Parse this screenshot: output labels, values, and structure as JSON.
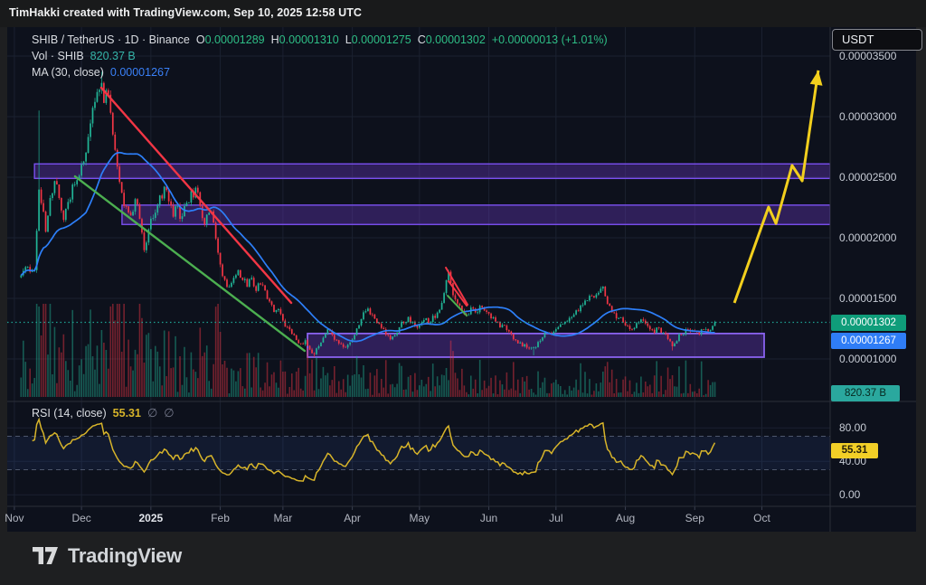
{
  "header_bar": {
    "title": "TimHakki created with TradingView.com, Sep 10, 2025 12:58 UTC"
  },
  "legend": {
    "symbol": "SHIB / TetherUS · 1D · Binance",
    "ohlc": [
      {
        "label": "O",
        "value": "0.00001289"
      },
      {
        "label": "H",
        "value": "0.00001310"
      },
      {
        "label": "L",
        "value": "0.00001275"
      },
      {
        "label": "C",
        "value": "0.00001302"
      }
    ],
    "change": "+0.00000013 (+1.01%)",
    "vol_label": "Vol · SHIB",
    "vol_value": "820.37 B",
    "ma_label": "MA (30, close)",
    "ma_value": "0.00001267"
  },
  "rsi_legend": {
    "label": "RSI (14, close)",
    "value": "55.31",
    "hidden_icons": [
      "∅",
      "∅"
    ]
  },
  "currency_button": {
    "label": "USDT"
  },
  "price_axis": {
    "labels": [
      {
        "text": "0.00003500",
        "price_e5": 3.5
      },
      {
        "text": "0.00003000",
        "price_e5": 3.0
      },
      {
        "text": "0.00002500",
        "price_e5": 2.5
      },
      {
        "text": "0.00002000",
        "price_e5": 2.0
      },
      {
        "text": "0.00001500",
        "price_e5": 1.5
      },
      {
        "text": "0.00001000",
        "price_e5": 1.0
      }
    ],
    "last_price_badge": {
      "text": "0.00001302",
      "color": "#0f9d7a"
    },
    "ma_badge": {
      "text": "0.00001267",
      "color": "#2f7df6"
    },
    "volume_badge": {
      "text": "820.37 B",
      "color": "#2aa89e"
    }
  },
  "rsi_axis": {
    "labels": [
      {
        "text": "80.00",
        "value": 80
      },
      {
        "text": "40.00",
        "value": 40
      },
      {
        "text": "0.00",
        "value": 0
      }
    ],
    "badge": {
      "text": "55.31",
      "value": 55.31,
      "color": "#f2cf27"
    }
  },
  "time_axis": {
    "labels": [
      {
        "text": "Nov",
        "day": -3,
        "bold": false
      },
      {
        "text": "Dec",
        "day": 27,
        "bold": false
      },
      {
        "text": "2025",
        "day": 58,
        "bold": true
      },
      {
        "text": "Feb",
        "day": 89,
        "bold": false
      },
      {
        "text": "Mar",
        "day": 117,
        "bold": false
      },
      {
        "text": "Apr",
        "day": 148,
        "bold": false
      },
      {
        "text": "May",
        "day": 178,
        "bold": false
      },
      {
        "text": "Jun",
        "day": 209,
        "bold": false
      },
      {
        "text": "Jul",
        "day": 239,
        "bold": false
      },
      {
        "text": "Aug",
        "day": 270,
        "bold": false
      },
      {
        "text": "Sep",
        "day": 301,
        "bold": false
      },
      {
        "text": "Oct",
        "day": 331,
        "bold": false
      }
    ]
  },
  "footer": {
    "brand": "TradingView"
  },
  "colors": {
    "background": "#0d111c",
    "page": "#1e1f21",
    "grid": "#1b2130",
    "candle_up": "#21b597",
    "candle_down": "#f23645",
    "ma_line": "#2d7ff9",
    "last_price_line": "#1fa392",
    "zone_fill": "rgba(95,52,175,0.42)",
    "zone_border": "#7a4ff0",
    "box_border": "#8a63f0",
    "trend_red": "#f23645",
    "trend_green": "#4caf50",
    "arrow_yellow": "#f2cf1d",
    "rsi_line": "#d7b42a",
    "rsi_band_dash": "#4d566b",
    "separator": "#2a2e39"
  },
  "chart_data": {
    "type": "candlestick",
    "title": "SHIB / TetherUS · 1D · Binance",
    "interval": "1D",
    "current_bar": {
      "open": 1.289e-05,
      "high": 1.31e-05,
      "low": 1.275e-05,
      "close": 1.302e-05,
      "change": 1.3e-07,
      "change_pct": 1.01
    },
    "volume_current": "820.37 B",
    "ma30_close_current": 1.267e-05,
    "rsi14_close_current": 55.31,
    "price_axis_ticks_e5": [
      3.5,
      3.0,
      2.5,
      2.0,
      1.5,
      1.0
    ],
    "x_day0": "first visible daily bar; month labels mark 1st of each month via day index",
    "close_anchors_day_price_e5": [
      [
        0,
        1.7
      ],
      [
        2,
        1.76
      ],
      [
        4,
        1.72
      ],
      [
        6,
        1.73
      ],
      [
        8,
        2.4
      ],
      [
        9,
        2.28
      ],
      [
        11,
        2.05
      ],
      [
        13,
        2.32
      ],
      [
        15,
        2.48
      ],
      [
        17,
        2.32
      ],
      [
        19,
        2.16
      ],
      [
        21,
        2.3
      ],
      [
        23,
        2.45
      ],
      [
        25,
        2.47
      ],
      [
        26,
        2.52
      ],
      [
        28,
        2.62
      ],
      [
        30,
        2.82
      ],
      [
        33,
        3.12
      ],
      [
        35,
        3.24
      ],
      [
        36,
        3.28
      ],
      [
        37,
        3.1
      ],
      [
        39,
        3.18
      ],
      [
        41,
        2.85
      ],
      [
        43,
        2.6
      ],
      [
        45,
        2.38
      ],
      [
        47,
        2.25
      ],
      [
        49,
        2.18
      ],
      [
        51,
        2.32
      ],
      [
        53,
        2.15
      ],
      [
        55,
        1.9
      ],
      [
        57,
        2.06
      ],
      [
        58,
        2.15
      ],
      [
        60,
        2.22
      ],
      [
        62,
        2.35
      ],
      [
        64,
        2.42
      ],
      [
        66,
        2.3
      ],
      [
        68,
        2.18
      ],
      [
        70,
        2.25
      ],
      [
        72,
        2.18
      ],
      [
        74,
        2.28
      ],
      [
        76,
        2.38
      ],
      [
        78,
        2.42
      ],
      [
        80,
        2.25
      ],
      [
        82,
        2.12
      ],
      [
        84,
        2.2
      ],
      [
        85,
        2.22
      ],
      [
        87,
        2.0
      ],
      [
        89,
        1.78
      ],
      [
        91,
        1.65
      ],
      [
        93,
        1.6
      ],
      [
        95,
        1.68
      ],
      [
        97,
        1.74
      ],
      [
        99,
        1.66
      ],
      [
        101,
        1.6
      ],
      [
        103,
        1.66
      ],
      [
        105,
        1.56
      ],
      [
        107,
        1.62
      ],
      [
        109,
        1.56
      ],
      [
        111,
        1.48
      ],
      [
        113,
        1.38
      ],
      [
        115,
        1.42
      ],
      [
        117,
        1.32
      ],
      [
        119,
        1.26
      ],
      [
        121,
        1.2
      ],
      [
        123,
        1.16
      ],
      [
        125,
        1.12
      ],
      [
        127,
        1.15
      ],
      [
        129,
        1.08
      ],
      [
        131,
        1.04
      ],
      [
        133,
        1.1
      ],
      [
        135,
        1.18
      ],
      [
        137,
        1.24
      ],
      [
        139,
        1.2
      ],
      [
        141,
        1.16
      ],
      [
        143,
        1.12
      ],
      [
        145,
        1.1
      ],
      [
        147,
        1.14
      ],
      [
        149,
        1.2
      ],
      [
        151,
        1.28
      ],
      [
        153,
        1.38
      ],
      [
        155,
        1.42
      ],
      [
        157,
        1.36
      ],
      [
        159,
        1.3
      ],
      [
        161,
        1.25
      ],
      [
        163,
        1.2
      ],
      [
        165,
        1.16
      ],
      [
        167,
        1.2
      ],
      [
        169,
        1.26
      ],
      [
        171,
        1.3
      ],
      [
        173,
        1.34
      ],
      [
        175,
        1.3
      ],
      [
        177,
        1.26
      ],
      [
        179,
        1.3
      ],
      [
        181,
        1.34
      ],
      [
        183,
        1.3
      ],
      [
        185,
        1.34
      ],
      [
        187,
        1.4
      ],
      [
        189,
        1.55
      ],
      [
        190,
        1.65
      ],
      [
        191,
        1.72
      ],
      [
        192,
        1.62
      ],
      [
        193,
        1.52
      ],
      [
        195,
        1.46
      ],
      [
        197,
        1.4
      ],
      [
        199,
        1.36
      ],
      [
        201,
        1.42
      ],
      [
        203,
        1.38
      ],
      [
        205,
        1.44
      ],
      [
        207,
        1.4
      ],
      [
        209,
        1.38
      ],
      [
        211,
        1.34
      ],
      [
        213,
        1.3
      ],
      [
        215,
        1.28
      ],
      [
        217,
        1.24
      ],
      [
        219,
        1.2
      ],
      [
        221,
        1.16
      ],
      [
        223,
        1.14
      ],
      [
        225,
        1.12
      ],
      [
        227,
        1.08
      ],
      [
        229,
        1.1
      ],
      [
        231,
        1.14
      ],
      [
        233,
        1.18
      ],
      [
        235,
        1.22
      ],
      [
        237,
        1.2
      ],
      [
        239,
        1.24
      ],
      [
        241,
        1.28
      ],
      [
        243,
        1.3
      ],
      [
        245,
        1.34
      ],
      [
        247,
        1.36
      ],
      [
        249,
        1.4
      ],
      [
        251,
        1.44
      ],
      [
        253,
        1.48
      ],
      [
        255,
        1.52
      ],
      [
        257,
        1.54
      ],
      [
        259,
        1.58
      ],
      [
        260,
        1.59
      ],
      [
        261,
        1.52
      ],
      [
        263,
        1.44
      ],
      [
        265,
        1.38
      ],
      [
        267,
        1.34
      ],
      [
        269,
        1.3
      ],
      [
        271,
        1.28
      ],
      [
        273,
        1.25
      ],
      [
        275,
        1.29
      ],
      [
        277,
        1.33
      ],
      [
        279,
        1.29
      ],
      [
        281,
        1.25
      ],
      [
        283,
        1.21
      ],
      [
        285,
        1.25
      ],
      [
        287,
        1.21
      ],
      [
        289,
        1.17
      ],
      [
        291,
        1.1
      ],
      [
        293,
        1.15
      ],
      [
        295,
        1.2
      ],
      [
        297,
        1.24
      ],
      [
        299,
        1.22
      ],
      [
        301,
        1.23
      ],
      [
        303,
        1.21
      ],
      [
        305,
        1.24
      ],
      [
        307,
        1.23
      ],
      [
        309,
        1.27
      ],
      [
        310,
        1.302
      ]
    ],
    "wick_overrides_e5": [
      {
        "day": 8,
        "high": 3.05
      },
      {
        "day": 36,
        "high": 3.37
      },
      {
        "day": 131,
        "low": 1.015
      },
      {
        "day": 229,
        "low": 1.03
      },
      {
        "day": 291,
        "low": 1.07
      }
    ],
    "volume_emphasis": {
      "8": 100,
      "9": 68,
      "36": 74,
      "37": 60,
      "38": 52,
      "45": 50,
      "55": 38,
      "90": 36,
      "91": 40,
      "117": 28,
      "190": 32,
      "260": 28,
      "291": 24
    },
    "zones_e5": [
      {
        "name": "upper-resistance-band",
        "price_from": 2.49,
        "price_to": 2.61,
        "day_from": 6,
        "day_to": 361.5
      },
      {
        "name": "lower-resistance-band",
        "price_from": 2.11,
        "price_to": 2.27,
        "day_from": 45.1,
        "day_to": 361.5
      },
      {
        "name": "accumulation-box",
        "price_from": 1.015,
        "price_to": 1.21,
        "day_from": 128,
        "day_to": 332
      }
    ],
    "trendlines_day_price_e5": [
      {
        "name": "red-downtrend-main",
        "color": "red",
        "width": 2.4,
        "from": [
          35.8,
          3.239
        ],
        "to": [
          120.7,
          1.463
        ]
      },
      {
        "name": "green-downtrend-support",
        "color": "green",
        "width": 2.4,
        "from": [
          24.1,
          2.507
        ],
        "to": [
          126.7,
          1.067
        ]
      },
      {
        "name": "red-wedge-a",
        "color": "red",
        "width": 2,
        "from": [
          189.8,
          1.754
        ],
        "to": [
          199.5,
          1.448
        ]
      },
      {
        "name": "red-wedge-b",
        "color": "red",
        "width": 2,
        "from": [
          191.0,
          1.642
        ],
        "to": [
          199.1,
          1.44
        ]
      },
      {
        "name": "green-wedge",
        "color": "green",
        "width": 2,
        "from": [
          190.6,
          1.522
        ],
        "to": [
          199.1,
          1.358
        ]
      }
    ],
    "projection_arrow_day_price_e5": [
      [
        318.7,
        1.463
      ],
      [
        334.0,
        2.254
      ],
      [
        337.3,
        2.119
      ],
      [
        344.5,
        2.597
      ],
      [
        349.0,
        2.47
      ],
      [
        356.2,
        3.381
      ]
    ],
    "rsi_panel": {
      "overbought": 70,
      "oversold": 30,
      "gridlines": [
        80,
        40,
        0
      ]
    }
  }
}
